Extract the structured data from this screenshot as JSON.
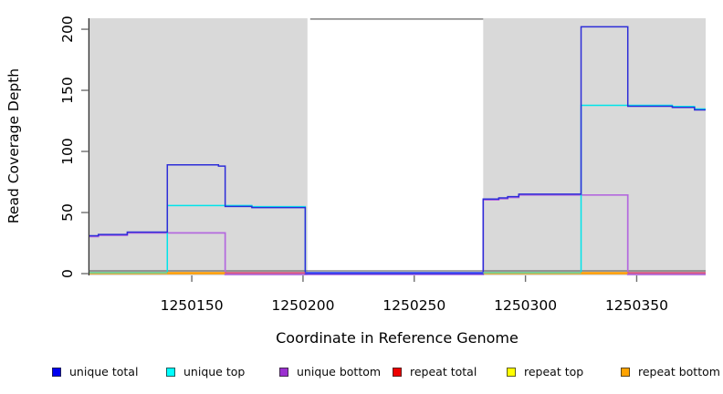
{
  "chart_data": {
    "type": "line",
    "subtype": "step",
    "title": "",
    "xlabel": "Coordinate in Reference Genome",
    "ylabel": "Read Coverage Depth",
    "xlim": [
      1250104,
      1250381
    ],
    "ylim": [
      0,
      209
    ],
    "x_ticks": [
      1250150,
      1250200,
      1250250,
      1250300,
      1250350
    ],
    "y_ticks": [
      0,
      50,
      100,
      150,
      200
    ],
    "grid": false,
    "legend_position": "bottom",
    "plot_background": "#d9d9d9",
    "masked_region": {
      "from": 1250202,
      "to": 1250281,
      "fill": "#ffffff",
      "top_edge_color": "#929292"
    },
    "series": [
      {
        "name": "unique total",
        "color": "#2d2dd8",
        "swatch": "#0000f0",
        "steps": [
          [
            1250104,
            31
          ],
          [
            1250108,
            32
          ],
          [
            1250121,
            34
          ],
          [
            1250139,
            89
          ],
          [
            1250162,
            88
          ],
          [
            1250165,
            55
          ],
          [
            1250177,
            54
          ],
          [
            1250201,
            0
          ],
          [
            1250281,
            61
          ],
          [
            1250288,
            62
          ],
          [
            1250292,
            63
          ],
          [
            1250297,
            65
          ],
          [
            1250325,
            202
          ],
          [
            1250346,
            137
          ],
          [
            1250366,
            136
          ],
          [
            1250376,
            134
          ]
        ]
      },
      {
        "name": "unique top",
        "color": "#00e4ea",
        "swatch": "#00ffff",
        "steps": [
          [
            1250104,
            0
          ],
          [
            1250139,
            55
          ],
          [
            1250177,
            54
          ],
          [
            1250201,
            0
          ],
          [
            1250325,
            137
          ],
          [
            1250366,
            136
          ],
          [
            1250376,
            134
          ]
        ]
      },
      {
        "name": "unique bottom",
        "color": "#b469de",
        "swatch": "#9b30d0",
        "steps": [
          [
            1250104,
            31
          ],
          [
            1250108,
            32
          ],
          [
            1250121,
            34
          ],
          [
            1250165,
            0
          ],
          [
            1250281,
            61
          ],
          [
            1250288,
            62
          ],
          [
            1250292,
            63
          ],
          [
            1250297,
            65
          ],
          [
            1250346,
            0
          ]
        ]
      },
      {
        "name": "repeat total",
        "color": "#e8425a",
        "swatch": "#ee0000",
        "steps": [
          [
            1250104,
            0
          ]
        ]
      },
      {
        "name": "repeat top",
        "color": "#ffff00",
        "swatch": "#ffff00",
        "steps": [
          [
            1250104,
            0
          ]
        ]
      },
      {
        "name": "repeat bottom",
        "color": "#ff9d00",
        "swatch": "#ffa300",
        "steps": [
          [
            1250104,
            0
          ]
        ]
      }
    ],
    "zero_line_segments": [
      {
        "from": 1250104,
        "to": 1250139,
        "color": "#80c985"
      },
      {
        "from": 1250139,
        "to": 1250165,
        "color": "#ff9d00"
      },
      {
        "from": 1250165,
        "to": 1250201,
        "color": "#d6537c"
      },
      {
        "from": 1250201,
        "to": 1250281,
        "color": "#3d3df0"
      },
      {
        "from": 1250281,
        "to": 1250325,
        "color": "#80c985"
      },
      {
        "from": 1250325,
        "to": 1250346,
        "color": "#ff9d00"
      },
      {
        "from": 1250346,
        "to": 1250381,
        "color": "#d6537c"
      }
    ]
  }
}
